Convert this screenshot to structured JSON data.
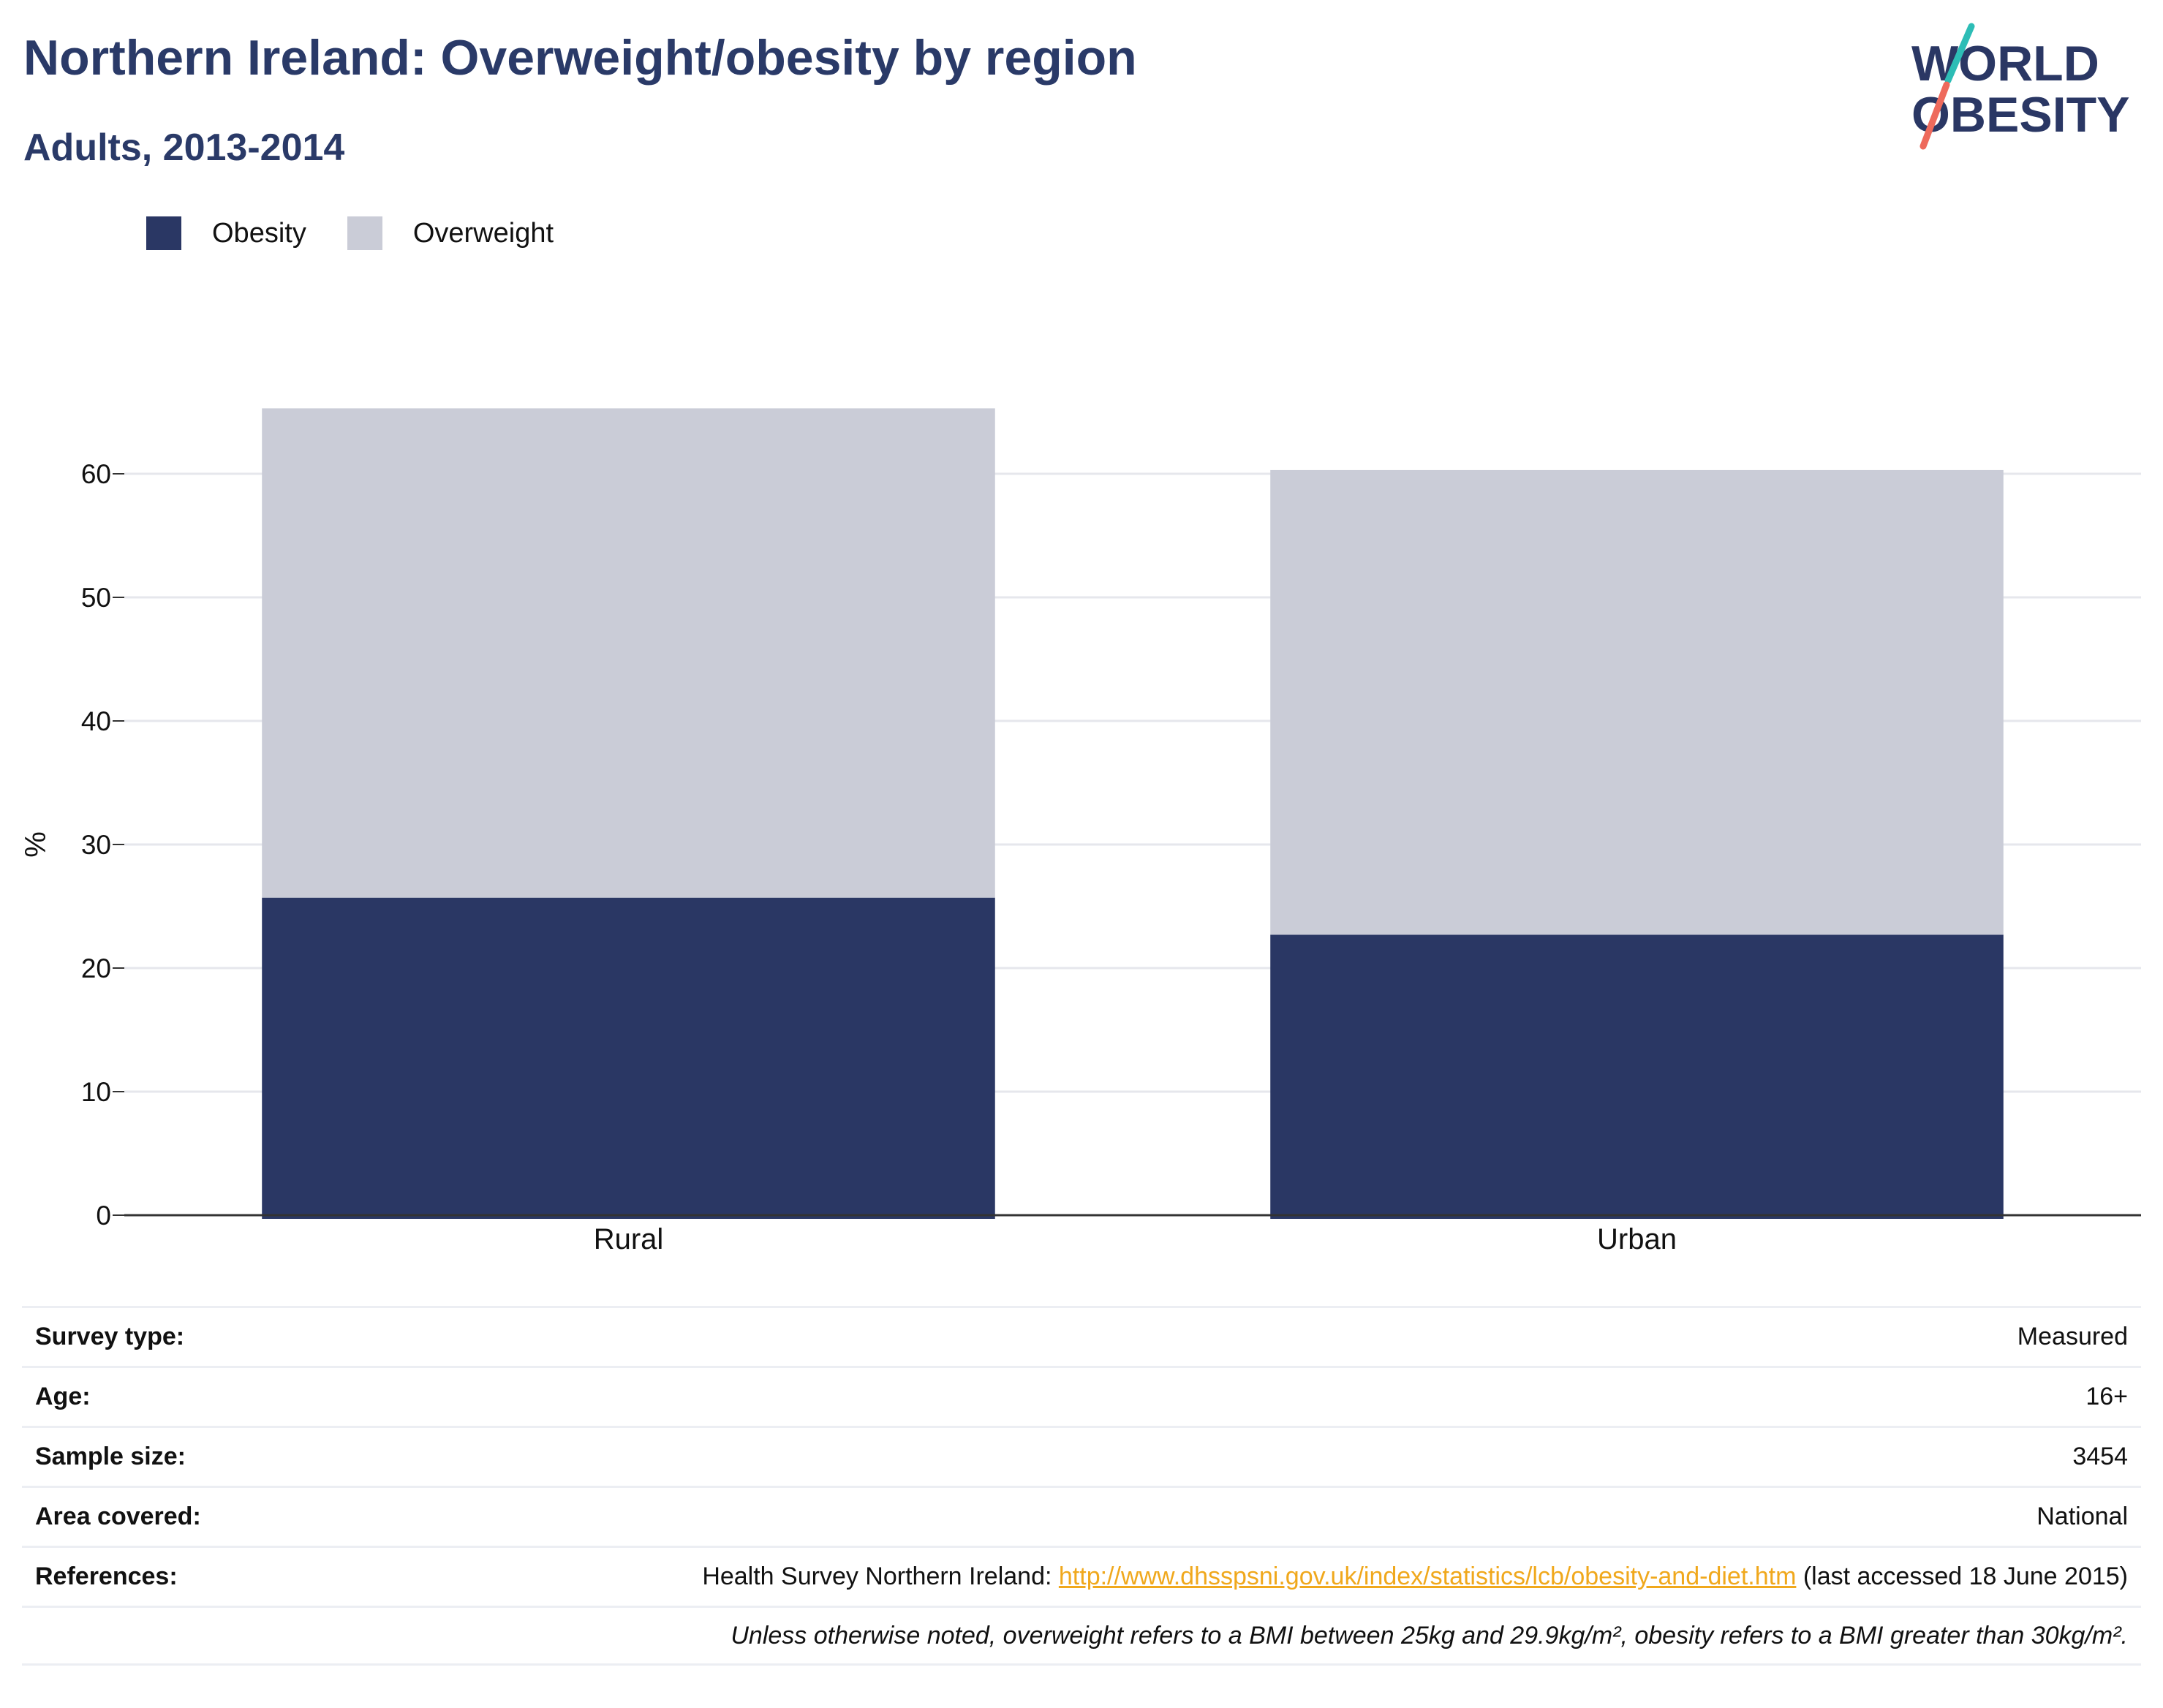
{
  "header": {
    "title": "Northern Ireland: Overweight/obesity by region",
    "subtitle": "Adults, 2013-2014"
  },
  "logo": {
    "line1": "WORLD",
    "line2": "OBESITY"
  },
  "legend": [
    {
      "label": "Obesity",
      "color": "#2a3764"
    },
    {
      "label": "Overweight",
      "color": "#caccd7"
    }
  ],
  "chart_data": {
    "type": "bar",
    "stacked": true,
    "categories": [
      "Rural",
      "Urban"
    ],
    "series": [
      {
        "name": "Obesity",
        "values": [
          25.7,
          22.7
        ],
        "color": "#2a3764"
      },
      {
        "name": "Overweight",
        "values": [
          39.6,
          37.6
        ],
        "color": "#caccd7"
      }
    ],
    "ylabel": "%",
    "ylim": [
      0,
      70
    ],
    "yticks": [
      0,
      10,
      20,
      30,
      40,
      50,
      60
    ],
    "grid": true,
    "legend_position": "top-left"
  },
  "info": {
    "survey_type": {
      "label": "Survey type:",
      "value": "Measured"
    },
    "age": {
      "label": "Age:",
      "value": "16+"
    },
    "sample_size": {
      "label": "Sample size:",
      "value": "3454"
    },
    "area": {
      "label": "Area covered:",
      "value": "National"
    },
    "references": {
      "label": "References:",
      "prefix": "Health Survey Northern Ireland: ",
      "link": "http://www.dhsspsni.gov.uk/index/statistics/lcb/obesity-and-diet.htm",
      "suffix": " (last accessed 18 June 2015)"
    },
    "note": "Unless otherwise noted, overweight refers to a BMI between 25kg and 29.9kg/m², obesity refers to a BMI greater than 30kg/m²."
  }
}
